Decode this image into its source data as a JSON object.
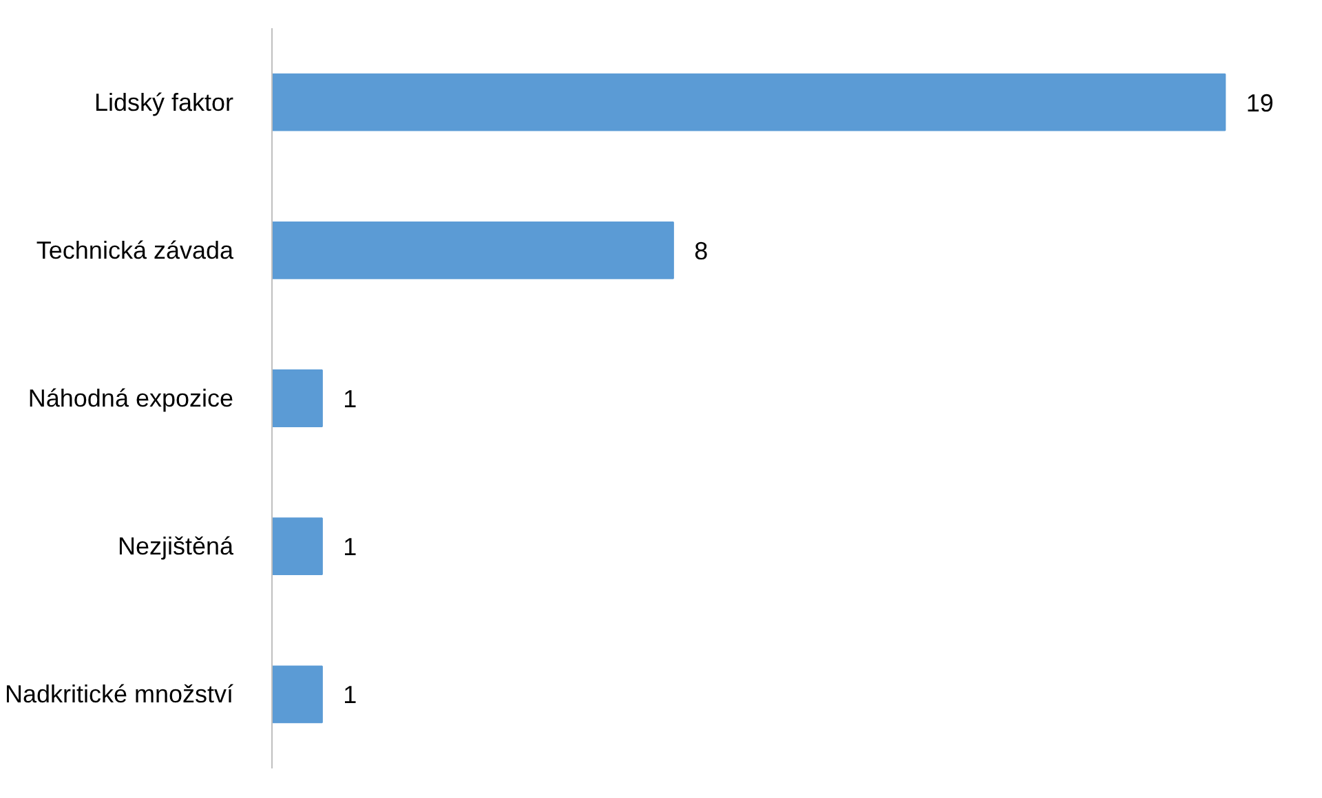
{
  "chart_data": {
    "type": "bar",
    "orientation": "horizontal",
    "categories": [
      "Lidský faktor",
      "Technická závada",
      "Náhodná expozice",
      "Nezjištěná",
      "Nadkritické množství"
    ],
    "values": [
      19,
      8,
      1,
      1,
      1
    ],
    "color": "#5b9bd5",
    "data_labels": true
  }
}
